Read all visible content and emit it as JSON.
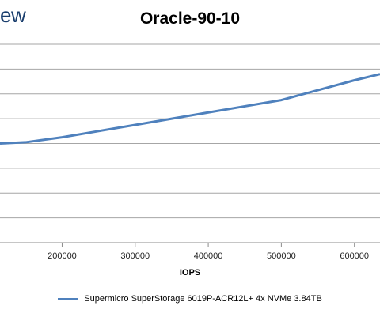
{
  "brand_text": "ew",
  "chart_data": {
    "type": "line",
    "title": "Oracle-90-10",
    "xlabel": "IOPS",
    "ylabel": "",
    "xlim": [
      115000,
      635000
    ],
    "ylim": [
      0,
      8
    ],
    "gridlines": 8,
    "x_ticks": [
      "200000",
      "300000",
      "400000",
      "500000",
      "600000"
    ],
    "x_tick_values": [
      200000,
      300000,
      400000,
      500000,
      600000
    ],
    "series": [
      {
        "name": "Supermicro SuperStorage 6019P-ACR12L+ 4x NVMe 3.84TB",
        "color": "#4f81bd",
        "points": [
          [
            115000,
            4.0
          ],
          [
            150000,
            4.05
          ],
          [
            200000,
            4.25
          ],
          [
            250000,
            4.5
          ],
          [
            300000,
            4.75
          ],
          [
            350000,
            5.0
          ],
          [
            400000,
            5.25
          ],
          [
            450000,
            5.5
          ],
          [
            500000,
            5.75
          ],
          [
            550000,
            6.15
          ],
          [
            600000,
            6.55
          ],
          [
            635000,
            6.8
          ]
        ]
      }
    ]
  }
}
